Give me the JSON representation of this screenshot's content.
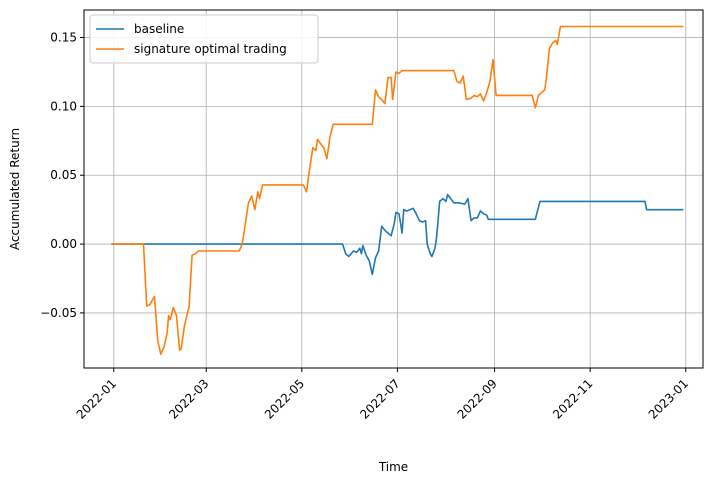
{
  "chart_data": {
    "type": "line",
    "xlabel": "Time",
    "ylabel": "Accumulated Return",
    "xlim": [
      "2021-12-13",
      "2023-01-12"
    ],
    "ylim": [
      -0.09,
      0.17
    ],
    "x_ticks": [
      {
        "date": "2022-01-01",
        "label": "2022-01"
      },
      {
        "date": "2022-03-01",
        "label": "2022-03"
      },
      {
        "date": "2022-05-01",
        "label": "2022-05"
      },
      {
        "date": "2022-07-01",
        "label": "2022-07"
      },
      {
        "date": "2022-09-01",
        "label": "2022-09"
      },
      {
        "date": "2022-11-01",
        "label": "2022-11"
      },
      {
        "date": "2023-01-01",
        "label": "2023-01"
      }
    ],
    "y_ticks": [
      {
        "value": -0.05,
        "label": "−0.05"
      },
      {
        "value": 0.0,
        "label": "0.00"
      },
      {
        "value": 0.05,
        "label": "0.05"
      },
      {
        "value": 0.1,
        "label": "0.10"
      },
      {
        "value": 0.15,
        "label": "0.15"
      }
    ],
    "grid": true,
    "legend_position": "top-left",
    "series": [
      {
        "name": "baseline",
        "color": "#1f77b4",
        "points": [
          [
            "2021-12-31",
            0.0
          ],
          [
            "2022-05-27",
            0.0
          ],
          [
            "2022-05-29",
            -0.007
          ],
          [
            "2022-05-31",
            -0.009
          ],
          [
            "2022-06-03",
            -0.005
          ],
          [
            "2022-06-05",
            -0.006
          ],
          [
            "2022-06-07",
            -0.003
          ],
          [
            "2022-06-08",
            -0.007
          ],
          [
            "2022-06-09",
            -0.001
          ],
          [
            "2022-06-11",
            -0.008
          ],
          [
            "2022-06-13",
            -0.012
          ],
          [
            "2022-06-15",
            -0.022
          ],
          [
            "2022-06-17",
            -0.01
          ],
          [
            "2022-06-19",
            -0.005
          ],
          [
            "2022-06-21",
            0.013
          ],
          [
            "2022-06-23",
            0.01
          ],
          [
            "2022-06-25",
            0.008
          ],
          [
            "2022-06-27",
            0.006
          ],
          [
            "2022-06-29",
            0.015
          ],
          [
            "2022-06-30",
            0.023
          ],
          [
            "2022-07-02",
            0.022
          ],
          [
            "2022-07-03",
            0.015
          ],
          [
            "2022-07-04",
            0.008
          ],
          [
            "2022-07-05",
            0.025
          ],
          [
            "2022-07-07",
            0.024
          ],
          [
            "2022-07-09",
            0.025
          ],
          [
            "2022-07-11",
            0.026
          ],
          [
            "2022-07-13",
            0.022
          ],
          [
            "2022-07-15",
            0.017
          ],
          [
            "2022-07-17",
            0.016
          ],
          [
            "2022-07-19",
            0.017
          ],
          [
            "2022-07-20",
            0.0
          ],
          [
            "2022-07-22",
            -0.007
          ],
          [
            "2022-07-23",
            -0.009
          ],
          [
            "2022-07-25",
            -0.003
          ],
          [
            "2022-07-26",
            0.005
          ],
          [
            "2022-07-28",
            0.031
          ],
          [
            "2022-07-30",
            0.033
          ],
          [
            "2022-08-01",
            0.031
          ],
          [
            "2022-08-02",
            0.036
          ],
          [
            "2022-08-04",
            0.033
          ],
          [
            "2022-08-06",
            0.03
          ],
          [
            "2022-08-09",
            0.03
          ],
          [
            "2022-08-13",
            0.029
          ],
          [
            "2022-08-15",
            0.033
          ],
          [
            "2022-08-17",
            0.017
          ],
          [
            "2022-08-19",
            0.019
          ],
          [
            "2022-08-21",
            0.019
          ],
          [
            "2022-08-23",
            0.024
          ],
          [
            "2022-08-25",
            0.022
          ],
          [
            "2022-08-27",
            0.021
          ],
          [
            "2022-08-28",
            0.018
          ],
          [
            "2022-09-27",
            0.018
          ],
          [
            "2022-09-30",
            0.031
          ],
          [
            "2022-12-06",
            0.031
          ],
          [
            "2022-12-07",
            0.025
          ],
          [
            "2022-12-30",
            0.025
          ]
        ]
      },
      {
        "name": "signature optimal trading",
        "color": "#ff7f0e",
        "points": [
          [
            "2021-12-31",
            0.0
          ],
          [
            "2022-01-20",
            0.0
          ],
          [
            "2022-01-22",
            -0.045
          ],
          [
            "2022-01-24",
            -0.044
          ],
          [
            "2022-01-26",
            -0.04
          ],
          [
            "2022-01-27",
            -0.038
          ],
          [
            "2022-01-29",
            -0.07
          ],
          [
            "2022-01-31",
            -0.08
          ],
          [
            "2022-02-02",
            -0.075
          ],
          [
            "2022-02-04",
            -0.065
          ],
          [
            "2022-02-05",
            -0.052
          ],
          [
            "2022-02-06",
            -0.055
          ],
          [
            "2022-02-08",
            -0.046
          ],
          [
            "2022-02-10",
            -0.052
          ],
          [
            "2022-02-12",
            -0.077
          ],
          [
            "2022-02-13",
            -0.076
          ],
          [
            "2022-02-15",
            -0.06
          ],
          [
            "2022-02-17",
            -0.05
          ],
          [
            "2022-02-18",
            -0.046
          ],
          [
            "2022-02-20",
            -0.008
          ],
          [
            "2022-02-22",
            -0.007
          ],
          [
            "2022-02-24",
            -0.005
          ],
          [
            "2022-03-22",
            -0.005
          ],
          [
            "2022-03-24",
            0.0
          ],
          [
            "2022-03-26",
            0.015
          ],
          [
            "2022-03-28",
            0.03
          ],
          [
            "2022-03-30",
            0.035
          ],
          [
            "2022-04-01",
            0.025
          ],
          [
            "2022-04-03",
            0.038
          ],
          [
            "2022-04-04",
            0.033
          ],
          [
            "2022-04-06",
            0.043
          ],
          [
            "2022-05-02",
            0.043
          ],
          [
            "2022-05-04",
            0.038
          ],
          [
            "2022-05-06",
            0.055
          ],
          [
            "2022-05-08",
            0.07
          ],
          [
            "2022-05-10",
            0.068
          ],
          [
            "2022-05-11",
            0.076
          ],
          [
            "2022-05-13",
            0.073
          ],
          [
            "2022-05-15",
            0.07
          ],
          [
            "2022-05-17",
            0.062
          ],
          [
            "2022-05-19",
            0.078
          ],
          [
            "2022-05-21",
            0.087
          ],
          [
            "2022-06-15",
            0.087
          ],
          [
            "2022-06-17",
            0.112
          ],
          [
            "2022-06-19",
            0.107
          ],
          [
            "2022-06-21",
            0.105
          ],
          [
            "2022-06-23",
            0.102
          ],
          [
            "2022-06-25",
            0.121
          ],
          [
            "2022-06-27",
            0.121
          ],
          [
            "2022-06-28",
            0.105
          ],
          [
            "2022-06-30",
            0.125
          ],
          [
            "2022-07-02",
            0.124
          ],
          [
            "2022-07-04",
            0.126
          ],
          [
            "2022-08-06",
            0.126
          ],
          [
            "2022-08-08",
            0.118
          ],
          [
            "2022-08-10",
            0.117
          ],
          [
            "2022-08-12",
            0.122
          ],
          [
            "2022-08-14",
            0.105
          ],
          [
            "2022-08-17",
            0.106
          ],
          [
            "2022-08-19",
            0.108
          ],
          [
            "2022-08-21",
            0.107
          ],
          [
            "2022-08-23",
            0.109
          ],
          [
            "2022-08-25",
            0.104
          ],
          [
            "2022-08-27",
            0.11
          ],
          [
            "2022-08-29",
            0.118
          ],
          [
            "2022-08-31",
            0.134
          ],
          [
            "2022-09-02",
            0.108
          ],
          [
            "2022-09-25",
            0.108
          ],
          [
            "2022-09-27",
            0.099
          ],
          [
            "2022-09-29",
            0.108
          ],
          [
            "2022-10-01",
            0.11
          ],
          [
            "2022-10-03",
            0.112
          ],
          [
            "2022-10-04",
            0.12
          ],
          [
            "2022-10-06",
            0.142
          ],
          [
            "2022-10-08",
            0.146
          ],
          [
            "2022-10-10",
            0.148
          ],
          [
            "2022-10-11",
            0.145
          ],
          [
            "2022-10-13",
            0.158
          ],
          [
            "2022-12-30",
            0.158
          ]
        ]
      }
    ]
  }
}
